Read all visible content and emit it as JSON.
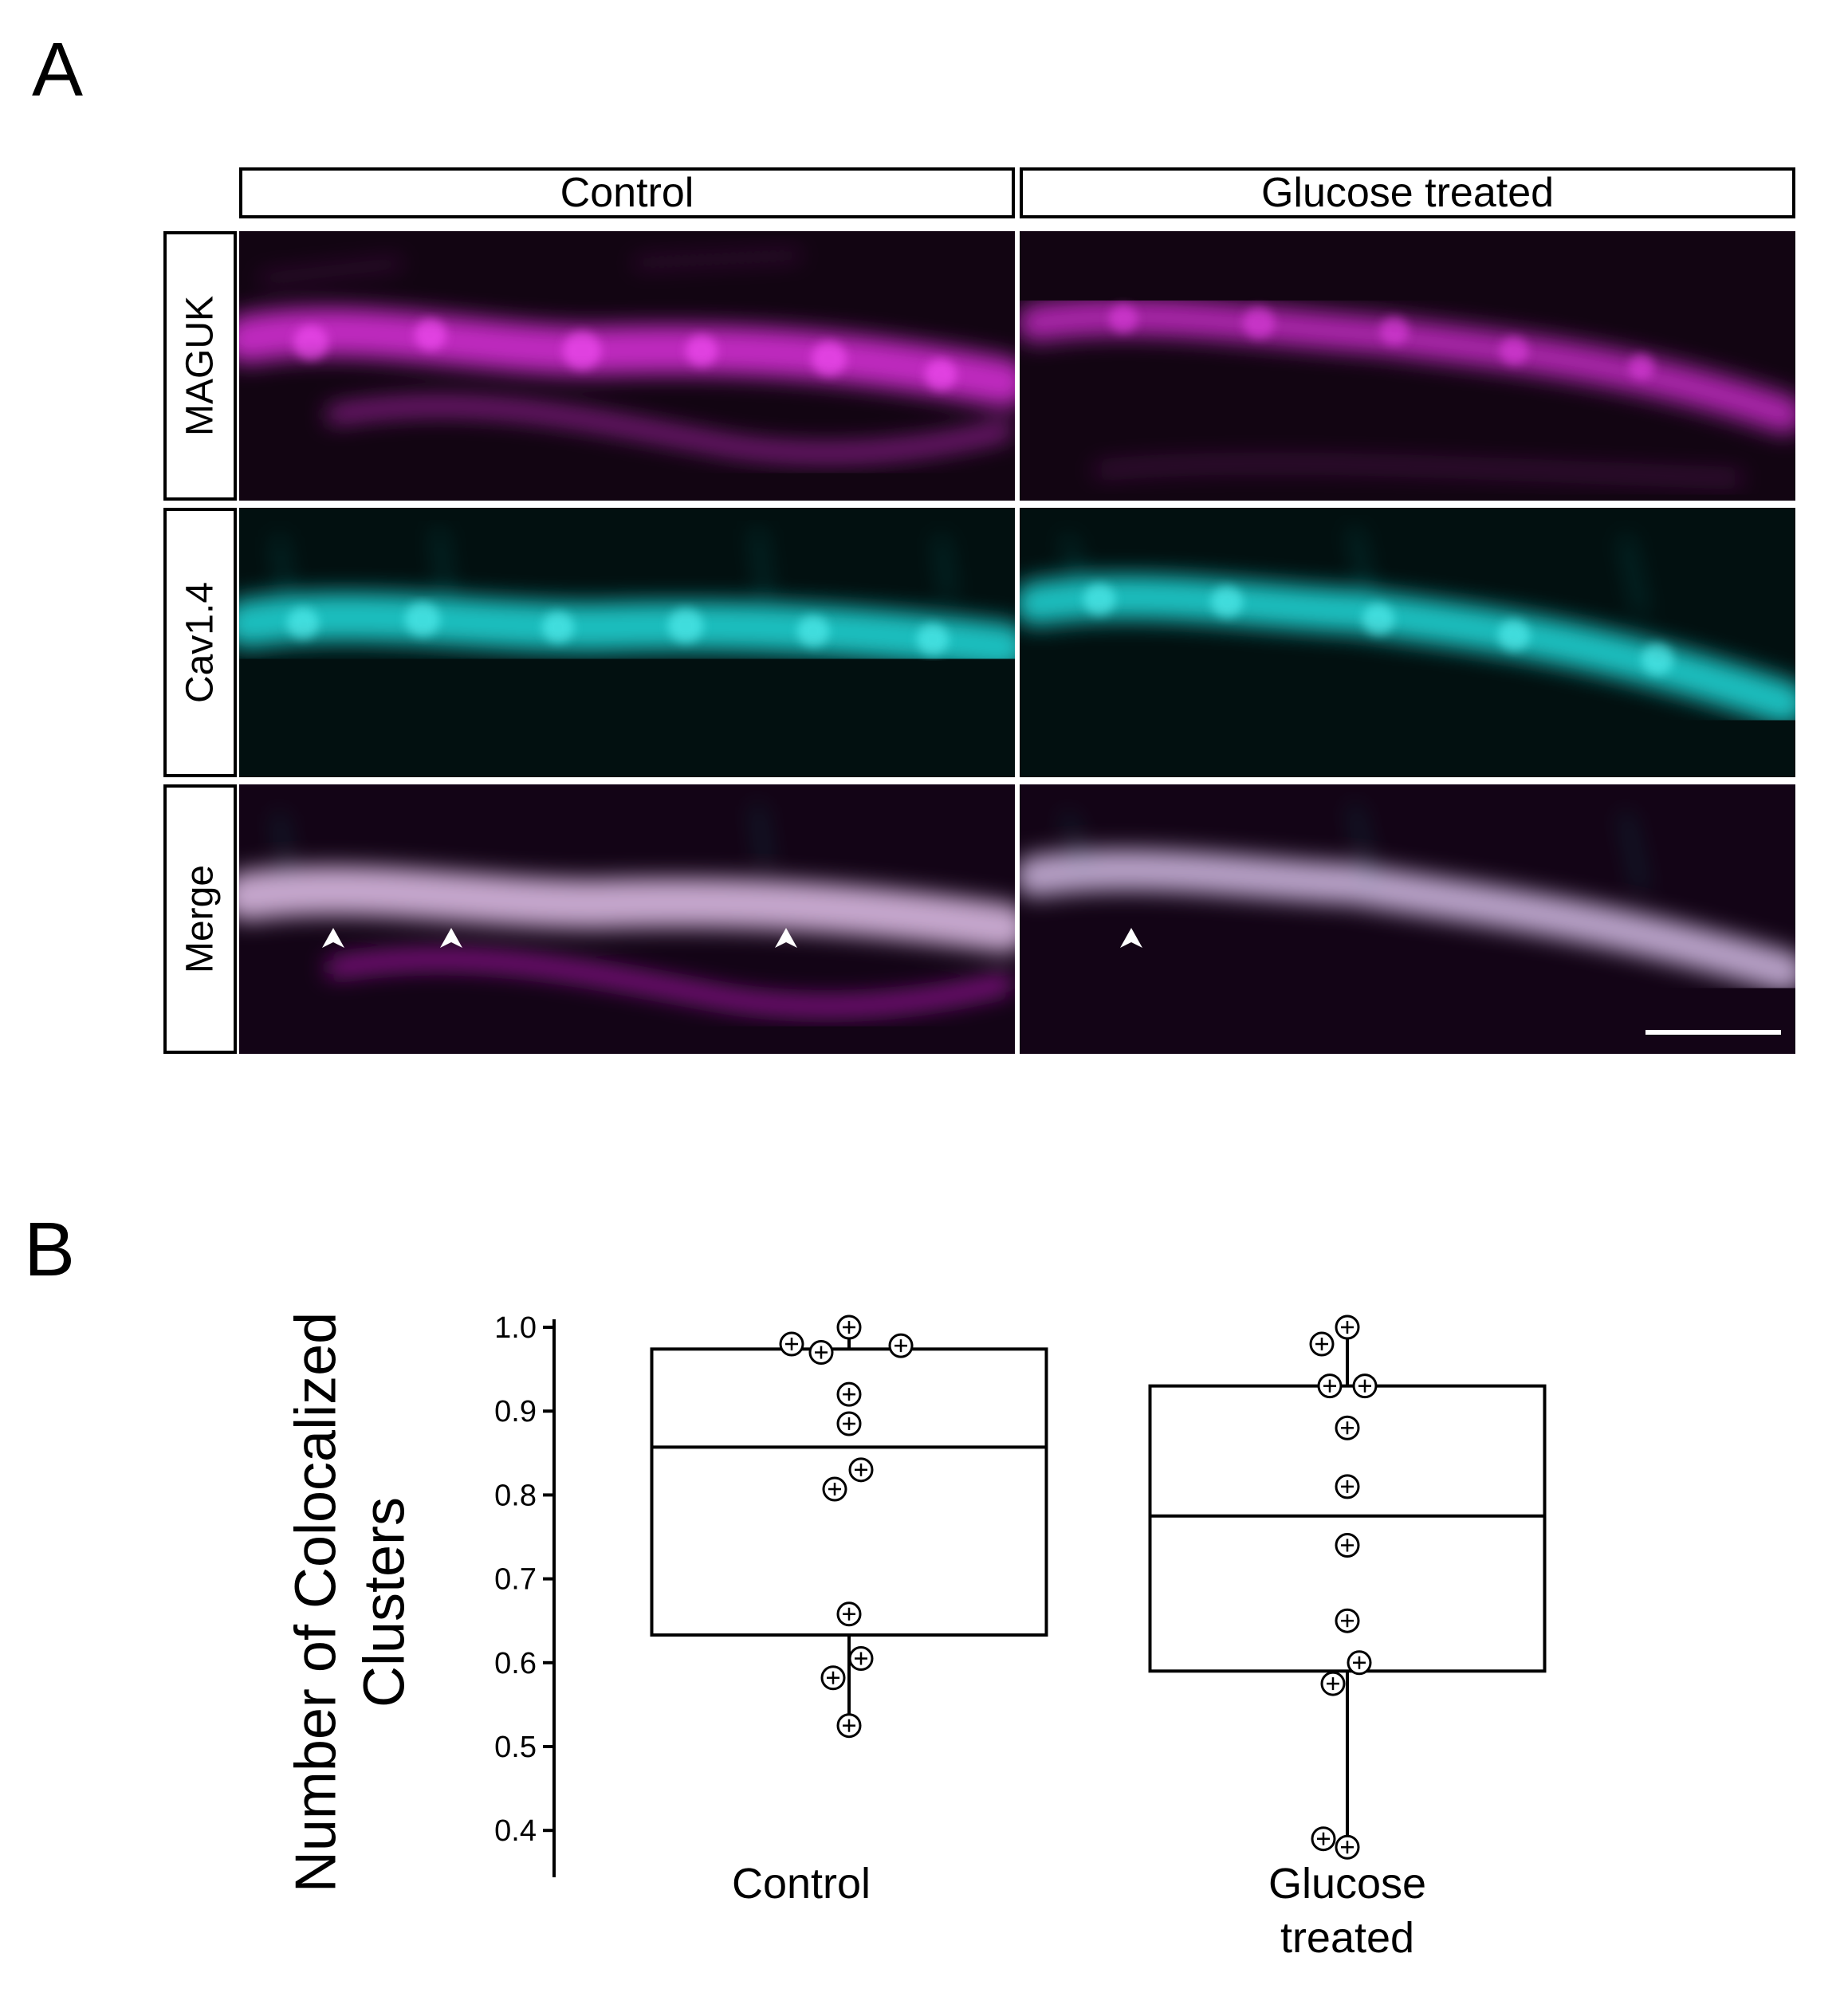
{
  "figure": {
    "panel_a_letter": "A",
    "panel_b_letter": "B",
    "panel_a": {
      "columns": [
        "Control",
        "Glucose treated"
      ],
      "rows": [
        "MAGUK",
        "Cav1.4",
        "Merge"
      ],
      "colors": {
        "maguk": "#e030e0",
        "cav": "#20e0e0",
        "background": "#000000",
        "arrowhead": "#ffffff"
      }
    }
  },
  "chart_data": {
    "type": "box",
    "title": "",
    "ylabel": "Number of Colocalized Clusters",
    "xlabel": "",
    "ylim": [
      0.35,
      1.0
    ],
    "yticks": [
      "1.0",
      "0.9",
      "0.8",
      "0.7",
      "0.6",
      "0.5",
      "0.4"
    ],
    "categories": [
      "Control",
      "Glucose treated"
    ],
    "series": [
      {
        "category": "Control",
        "box": {
          "q1": 0.633,
          "median": 0.857,
          "q3": 0.974,
          "whisker_low": 0.525,
          "whisker_high": 1.0
        },
        "points": [
          1.0,
          0.98,
          0.978,
          0.97,
          0.92,
          0.885,
          0.83,
          0.807,
          0.658,
          0.605,
          0.582,
          0.525
        ]
      },
      {
        "category": "Glucose treated",
        "box": {
          "q1": 0.59,
          "median": 0.775,
          "q3": 0.93,
          "whisker_low": 0.38,
          "whisker_high": 1.0
        },
        "points": [
          1.0,
          0.98,
          0.93,
          0.93,
          0.88,
          0.81,
          0.74,
          0.65,
          0.6,
          0.575,
          0.39,
          0.38
        ]
      }
    ]
  }
}
